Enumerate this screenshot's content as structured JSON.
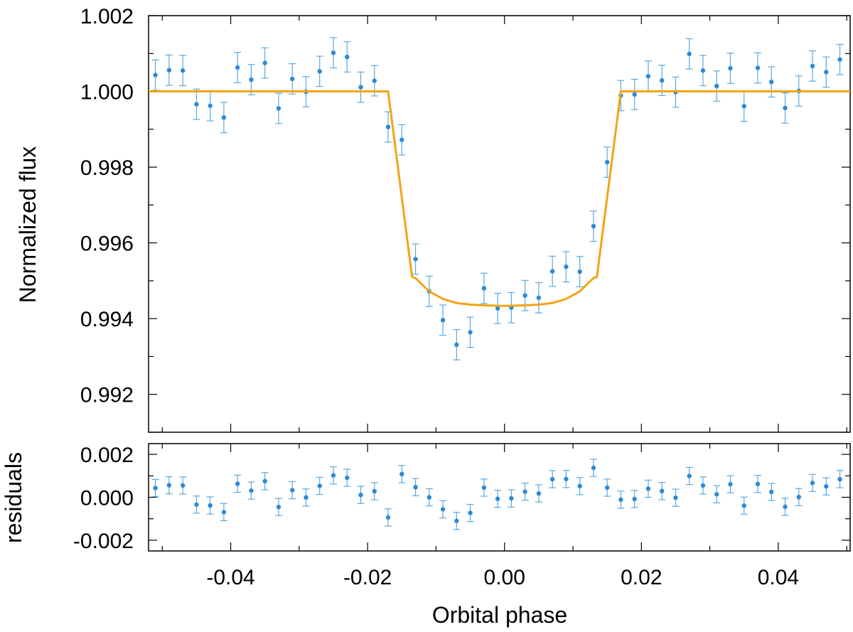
{
  "chart_data": [
    {
      "type": "scatter",
      "panel": "main",
      "xlabel": "Orbital phase",
      "ylabel": "Normalized flux",
      "xlim": [
        -0.052,
        0.0505
      ],
      "ylim": [
        0.991,
        1.002
      ],
      "x_ticks": [
        -0.04,
        -0.02,
        0.0,
        0.02,
        0.04
      ],
      "x_tick_labels": [
        "-0.04",
        "-0.02",
        "0.00",
        "0.02",
        "0.04"
      ],
      "y_ticks": [
        0.992,
        0.994,
        0.996,
        0.998,
        1.0,
        1.002
      ],
      "y_tick_labels": [
        "0.992",
        "0.994",
        "0.996",
        "0.998",
        "1.000",
        "1.002"
      ],
      "grid": false,
      "colors": {
        "data": "#2b8ad8",
        "errorbar": "#5aa8e0",
        "model": "#f2a414"
      },
      "series": [
        {
          "kind": "errorbar",
          "x": [
            -0.051,
            -0.049,
            -0.047,
            -0.045,
            -0.043,
            -0.041,
            -0.039,
            -0.037,
            -0.035,
            -0.033,
            -0.031,
            -0.029,
            -0.027,
            -0.025,
            -0.023,
            -0.021,
            -0.019,
            -0.017,
            -0.015,
            -0.013,
            -0.011,
            -0.009,
            -0.007,
            -0.005,
            -0.003,
            -0.001,
            0.001,
            0.003,
            0.005,
            0.007,
            0.009,
            0.011,
            0.013,
            0.015,
            0.017,
            0.019,
            0.021,
            0.023,
            0.025,
            0.027,
            0.029,
            0.031,
            0.033,
            0.035,
            0.037,
            0.039,
            0.041,
            0.043,
            0.045,
            0.047,
            0.049
          ],
          "y": [
            1.00043,
            1.00056,
            1.00055,
            0.99966,
            0.99962,
            0.99931,
            1.00063,
            1.00031,
            1.00075,
            0.99955,
            1.00033,
            0.99999,
            1.00053,
            1.00102,
            1.00091,
            1.00011,
            1.00028,
            0.99906,
            0.99872,
            0.99557,
            0.99472,
            0.99396,
            0.99331,
            0.99364,
            0.9948,
            0.99427,
            0.99429,
            0.99461,
            0.99455,
            0.99525,
            0.99537,
            0.99524,
            0.99644,
            0.99813,
            0.99989,
            0.99992,
            1.0004,
            1.00029,
            0.99998,
            1.00099,
            1.00055,
            1.00014,
            1.00061,
            0.99961,
            1.00062,
            1.00025,
            0.99956,
            1.00001,
            1.00067,
            1.00051,
            1.00084
          ],
          "yerr": 0.0004
        },
        {
          "kind": "line",
          "x": [
            -0.052,
            -0.017,
            -0.0135,
            -0.013,
            -0.011,
            -0.009,
            -0.007,
            -0.005,
            -0.003,
            -0.001,
            0.001,
            0.003,
            0.005,
            0.007,
            0.009,
            0.011,
            0.013,
            0.0135,
            0.017,
            0.0505
          ],
          "y": [
            1.0,
            1.0,
            0.9951,
            0.99507,
            0.99472,
            0.99452,
            0.99441,
            0.99437,
            0.99435,
            0.99434,
            0.99434,
            0.99435,
            0.99437,
            0.99441,
            0.99452,
            0.99472,
            0.99507,
            0.9951,
            1.0,
            1.0
          ]
        }
      ]
    },
    {
      "type": "scatter",
      "panel": "residuals",
      "xlabel": "Orbital phase",
      "ylabel": "residuals",
      "xlim": [
        -0.052,
        0.0505
      ],
      "ylim": [
        -0.0025,
        0.0025
      ],
      "y_ticks": [
        -0.002,
        0.0,
        0.002
      ],
      "y_tick_labels": [
        "-0.002",
        "0.000",
        "0.002"
      ],
      "grid": false,
      "series": [
        {
          "kind": "errorbar",
          "x": [
            -0.051,
            -0.049,
            -0.047,
            -0.045,
            -0.043,
            -0.041,
            -0.039,
            -0.037,
            -0.035,
            -0.033,
            -0.031,
            -0.029,
            -0.027,
            -0.025,
            -0.023,
            -0.021,
            -0.019,
            -0.017,
            -0.015,
            -0.013,
            -0.011,
            -0.009,
            -0.007,
            -0.005,
            -0.003,
            -0.001,
            0.001,
            0.003,
            0.005,
            0.007,
            0.009,
            0.011,
            0.013,
            0.015,
            0.017,
            0.019,
            0.021,
            0.023,
            0.025,
            0.027,
            0.029,
            0.031,
            0.033,
            0.035,
            0.037,
            0.039,
            0.041,
            0.043,
            0.045,
            0.047,
            0.049
          ],
          "y": [
            0.00043,
            0.00056,
            0.00055,
            -0.00034,
            -0.00038,
            -0.00069,
            0.00063,
            0.00031,
            0.00075,
            -0.00045,
            0.00033,
            -1e-05,
            0.00053,
            0.00102,
            0.00091,
            0.00011,
            0.00028,
            -0.00094,
            0.00108,
            0.00047,
            0.0,
            -0.00056,
            -0.0011,
            -0.00073,
            0.00045,
            -7e-05,
            -5e-05,
            0.00026,
            0.00018,
            0.00084,
            0.00085,
            0.00052,
            0.00137,
            0.00045,
            -0.00011,
            -8e-05,
            0.0004,
            0.00029,
            -2e-05,
            0.00099,
            0.00055,
            0.00014,
            0.00061,
            -0.00039,
            0.00062,
            0.00025,
            -0.00044,
            1e-05,
            0.00067,
            0.00051,
            0.00084
          ],
          "yerr": 0.0004
        }
      ]
    }
  ]
}
